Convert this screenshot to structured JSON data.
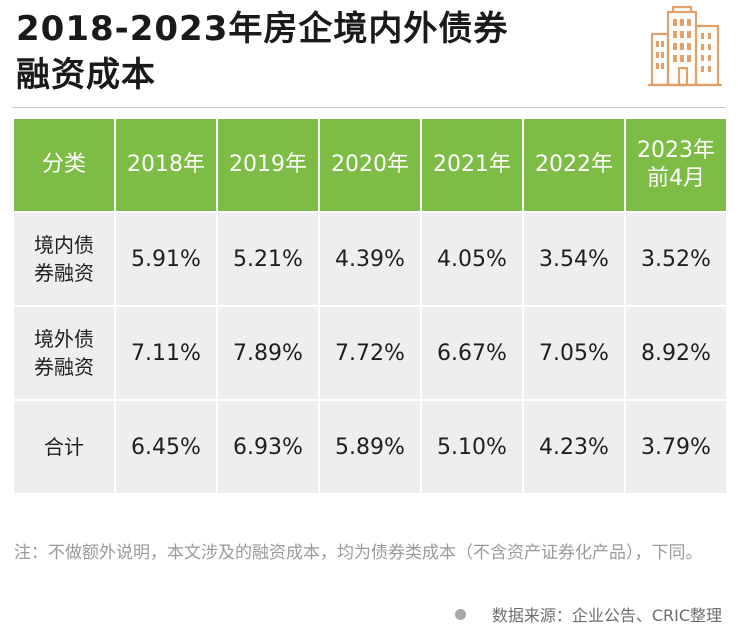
{
  "title": {
    "line1": "2018-2023年房企境内外债券",
    "line2": "融资成本"
  },
  "icons": {
    "logo": "building-icon"
  },
  "colors": {
    "header_bg": "#7dbd46",
    "cell_bg": "#eeeeee",
    "building": "#e2a06a"
  },
  "table": {
    "headers": [
      "分类",
      "2018年",
      "2019年",
      "2020年",
      "2021年",
      "2022年",
      "2023年前4月"
    ],
    "rows": [
      {
        "label": "境内债券融资",
        "values": [
          "5.91%",
          "5.21%",
          "4.39%",
          "4.05%",
          "3.54%",
          "3.52%"
        ]
      },
      {
        "label": "境外债券融资",
        "values": [
          "7.11%",
          "7.89%",
          "7.72%",
          "6.67%",
          "7.05%",
          "8.92%"
        ]
      },
      {
        "label": "合计",
        "values": [
          "6.45%",
          "6.93%",
          "5.89%",
          "5.10%",
          "4.23%",
          "3.79%"
        ]
      }
    ]
  },
  "note": "注：不做额外说明，本文涉及的融资成本，均为债券类成本（不含资产证券化产品），下同。",
  "source": "数据来源：企业公告、CRIC整理"
}
